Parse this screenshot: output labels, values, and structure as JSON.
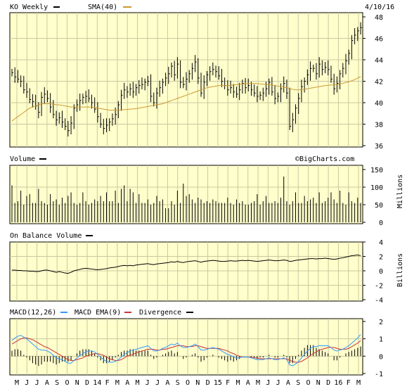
{
  "header": {
    "ticker_label": "KO Weekly",
    "sma_label": "SMA(40)",
    "date": "4/10/16"
  },
  "colors": {
    "panel_bg": "#ffffcc",
    "grid": "#c8c8a0",
    "sma": "#cc9933",
    "macd": "#3399ff",
    "macd_ema": "#cc3333",
    "bars": "#000000"
  },
  "watermark": "©BigCharts.com",
  "chart_data": [
    {
      "type": "ohlc",
      "name": "price",
      "yticks": [
        36,
        38,
        40,
        42,
        44,
        46,
        48
      ],
      "ylim": [
        36,
        48
      ],
      "x_tick_labels": [
        "M",
        "J",
        "J",
        "A",
        "S",
        "O",
        "N",
        "D",
        "14",
        "F",
        "M",
        "A",
        "M",
        "J",
        "J",
        "A",
        "S",
        "O",
        "N",
        "D",
        "15",
        "F",
        "M",
        "A",
        "M",
        "J",
        "J",
        "A",
        "S",
        "O",
        "N",
        "D",
        "16",
        "F",
        "M"
      ],
      "close": [
        42.8,
        42.4,
        42.2,
        42.0,
        41.2,
        41.0,
        40.3,
        40.1,
        39.7,
        39.1,
        40.5,
        40.8,
        40.4,
        39.6,
        38.9,
        38.4,
        38.6,
        38.2,
        37.8,
        37.4,
        38.1,
        39.5,
        39.8,
        40.2,
        40.5,
        40.6,
        40.4,
        40.0,
        39.4,
        38.7,
        38.0,
        37.6,
        37.9,
        38.2,
        38.5,
        38.9,
        39.8,
        40.7,
        41.2,
        41.0,
        41.3,
        41.0,
        41.4,
        41.6,
        41.7,
        41.9,
        42.0,
        40.6,
        40.0,
        40.9,
        41.4,
        41.9,
        42.3,
        42.7,
        43.4,
        42.6,
        43.6,
        41.9,
        41.7,
        42.2,
        42.7,
        43.2,
        43.8,
        42.3,
        40.9,
        41.9,
        42.6,
        42.9,
        43.1,
        42.9,
        42.5,
        42.0,
        41.6,
        41.2,
        41.4,
        41.0,
        40.8,
        41.2,
        41.8,
        41.4,
        41.6,
        41.2,
        40.9,
        40.6,
        40.7,
        40.9,
        41.3,
        41.9,
        41.0,
        40.4,
        40.6,
        41.3,
        41.8,
        40.9,
        37.8,
        38.4,
        39.5,
        40.4,
        41.5,
        42.0,
        42.6,
        43.2,
        43.2,
        42.7,
        43.6,
        43.1,
        43.3,
        43.1,
        42.2,
        41.3,
        41.8,
        42.7,
        43.2,
        43.9,
        44.6,
        45.8,
        46.3,
        46.7,
        47.0
      ],
      "sma": [
        38.3,
        38.5,
        38.7,
        38.9,
        39.1,
        39.3,
        39.5,
        39.6,
        39.7,
        39.8,
        39.9,
        39.9,
        39.9,
        39.9,
        39.85,
        39.8,
        39.8,
        39.75,
        39.7,
        39.65,
        39.6,
        39.6,
        39.6,
        39.6,
        39.6,
        39.6,
        39.6,
        39.6,
        39.55,
        39.5,
        39.45,
        39.4,
        39.35,
        39.3,
        39.3,
        39.3,
        39.3,
        39.32,
        39.35,
        39.38,
        39.4,
        39.42,
        39.45,
        39.5,
        39.55,
        39.6,
        39.65,
        39.7,
        39.75,
        39.8,
        39.85,
        39.9,
        40.0,
        40.1,
        40.2,
        40.3,
        40.4,
        40.5,
        40.6,
        40.7,
        40.8,
        40.9,
        41.0,
        41.1,
        41.2,
        41.3,
        41.4,
        41.45,
        41.5,
        41.55,
        41.6,
        41.6,
        41.6,
        41.6,
        41.62,
        41.65,
        41.7,
        41.72,
        41.75,
        41.78,
        41.8,
        41.8,
        41.8,
        41.78,
        41.75,
        41.72,
        41.7,
        41.68,
        41.65,
        41.6,
        41.55,
        41.5,
        41.45,
        41.4,
        41.3,
        41.25,
        41.2,
        41.2,
        41.22,
        41.25,
        41.3,
        41.35,
        41.4,
        41.45,
        41.5,
        41.55,
        41.6,
        41.62,
        41.65,
        41.68,
        41.7,
        41.75,
        41.8,
        41.88,
        41.95,
        42.05,
        42.15,
        42.3,
        42.45
      ]
    },
    {
      "type": "bar",
      "name": "volume",
      "label": "Volume",
      "yticks": [
        0,
        50,
        100,
        150
      ],
      "ylim": [
        0,
        150
      ],
      "yunit": "Millions",
      "values": [
        105,
        55,
        60,
        90,
        50,
        75,
        80,
        55,
        55,
        95,
        60,
        55,
        50,
        80,
        60,
        65,
        50,
        70,
        55,
        75,
        85,
        55,
        50,
        55,
        85,
        60,
        50,
        55,
        65,
        60,
        75,
        60,
        85,
        60,
        60,
        90,
        55,
        95,
        105,
        60,
        95,
        85,
        55,
        80,
        55,
        55,
        65,
        50,
        55,
        75,
        60,
        65,
        40,
        40,
        60,
        50,
        90,
        55,
        110,
        75,
        80,
        65,
        55,
        70,
        65,
        55,
        60,
        55,
        65,
        60,
        55,
        55,
        55,
        70,
        55,
        50,
        65,
        55,
        60,
        50,
        50,
        55,
        60,
        80,
        50,
        60,
        75,
        55,
        55,
        60,
        55,
        70,
        130,
        60,
        50,
        60,
        85,
        55,
        55,
        75,
        60,
        65,
        70,
        55,
        85,
        55,
        60,
        70,
        85,
        65,
        55,
        90,
        55,
        50,
        85,
        60,
        55,
        70,
        55
      ]
    },
    {
      "type": "line",
      "name": "on_balance_volume",
      "label": "On Balance Volume",
      "yticks": [
        -4,
        -2,
        0,
        2,
        4
      ],
      "ylim": [
        -4,
        4
      ],
      "yunit": "Billions",
      "values": [
        0.1,
        0.1,
        0.05,
        0.05,
        0.0,
        0.0,
        -0.05,
        -0.05,
        -0.1,
        -0.1,
        0.0,
        0.1,
        0.1,
        0.0,
        -0.1,
        -0.2,
        -0.1,
        -0.2,
        -0.3,
        -0.35,
        -0.2,
        0.0,
        0.1,
        0.2,
        0.3,
        0.35,
        0.3,
        0.25,
        0.2,
        0.15,
        0.2,
        0.25,
        0.3,
        0.4,
        0.45,
        0.5,
        0.6,
        0.7,
        0.75,
        0.7,
        0.75,
        0.7,
        0.8,
        0.85,
        0.9,
        0.95,
        1.0,
        0.9,
        0.85,
        0.95,
        1.0,
        1.05,
        1.1,
        1.15,
        1.25,
        1.2,
        1.3,
        1.2,
        1.15,
        1.25,
        1.3,
        1.35,
        1.4,
        1.3,
        1.2,
        1.3,
        1.35,
        1.4,
        1.45,
        1.4,
        1.35,
        1.3,
        1.3,
        1.35,
        1.4,
        1.35,
        1.35,
        1.4,
        1.45,
        1.4,
        1.45,
        1.4,
        1.35,
        1.3,
        1.35,
        1.4,
        1.45,
        1.5,
        1.45,
        1.4,
        1.4,
        1.45,
        1.5,
        1.45,
        1.3,
        1.35,
        1.45,
        1.5,
        1.55,
        1.6,
        1.65,
        1.7,
        1.7,
        1.65,
        1.7,
        1.7,
        1.75,
        1.7,
        1.65,
        1.6,
        1.65,
        1.75,
        1.8,
        1.9,
        2.0,
        2.1,
        2.15,
        2.2,
        2.1
      ]
    },
    {
      "type": "line",
      "name": "macd",
      "label": "MACD(12,26)",
      "ema_label": "MACD EMA(9)",
      "divergence_label": "Divergence",
      "yticks": [
        -1,
        0,
        1,
        2
      ],
      "ylim": [
        -1,
        2
      ],
      "macd": [
        0.9,
        1.05,
        1.15,
        1.2,
        1.1,
        1.0,
        0.85,
        0.7,
        0.55,
        0.4,
        0.35,
        0.35,
        0.3,
        0.2,
        0.05,
        -0.1,
        -0.15,
        -0.2,
        -0.3,
        -0.4,
        -0.4,
        -0.25,
        -0.1,
        0.05,
        0.15,
        0.25,
        0.3,
        0.3,
        0.25,
        0.1,
        -0.05,
        -0.2,
        -0.3,
        -0.35,
        -0.35,
        -0.3,
        -0.2,
        -0.05,
        0.1,
        0.2,
        0.3,
        0.35,
        0.4,
        0.45,
        0.5,
        0.55,
        0.6,
        0.45,
        0.3,
        0.3,
        0.35,
        0.45,
        0.5,
        0.6,
        0.7,
        0.65,
        0.75,
        0.6,
        0.5,
        0.5,
        0.55,
        0.6,
        0.7,
        0.55,
        0.35,
        0.35,
        0.4,
        0.45,
        0.5,
        0.45,
        0.4,
        0.3,
        0.2,
        0.1,
        0.05,
        -0.05,
        -0.1,
        -0.1,
        -0.05,
        -0.05,
        -0.05,
        -0.1,
        -0.15,
        -0.2,
        -0.2,
        -0.2,
        -0.15,
        -0.1,
        -0.15,
        -0.2,
        -0.2,
        -0.15,
        -0.1,
        -0.2,
        -0.5,
        -0.55,
        -0.45,
        -0.3,
        -0.1,
        0.1,
        0.3,
        0.45,
        0.55,
        0.55,
        0.6,
        0.6,
        0.6,
        0.6,
        0.5,
        0.35,
        0.3,
        0.35,
        0.4,
        0.5,
        0.6,
        0.75,
        0.9,
        1.05,
        1.25
      ],
      "ema": [
        0.7,
        0.8,
        0.9,
        1.0,
        1.05,
        1.05,
        1.0,
        0.95,
        0.85,
        0.75,
        0.65,
        0.55,
        0.5,
        0.4,
        0.3,
        0.2,
        0.1,
        0.0,
        -0.1,
        -0.2,
        -0.25,
        -0.25,
        -0.2,
        -0.15,
        -0.1,
        0.0,
        0.05,
        0.1,
        0.15,
        0.15,
        0.1,
        0.05,
        -0.05,
        -0.15,
        -0.2,
        -0.25,
        -0.25,
        -0.2,
        -0.1,
        0.0,
        0.05,
        0.1,
        0.2,
        0.25,
        0.3,
        0.35,
        0.4,
        0.4,
        0.4,
        0.35,
        0.35,
        0.4,
        0.4,
        0.45,
        0.5,
        0.55,
        0.6,
        0.6,
        0.6,
        0.55,
        0.55,
        0.55,
        0.6,
        0.6,
        0.55,
        0.5,
        0.45,
        0.45,
        0.45,
        0.45,
        0.45,
        0.4,
        0.35,
        0.3,
        0.2,
        0.15,
        0.05,
        0.0,
        -0.05,
        -0.05,
        -0.05,
        -0.05,
        -0.1,
        -0.1,
        -0.15,
        -0.15,
        -0.15,
        -0.15,
        -0.15,
        -0.15,
        -0.15,
        -0.15,
        -0.15,
        -0.15,
        -0.25,
        -0.3,
        -0.35,
        -0.35,
        -0.3,
        -0.2,
        -0.1,
        0.05,
        0.15,
        0.25,
        0.35,
        0.4,
        0.45,
        0.5,
        0.5,
        0.5,
        0.45,
        0.4,
        0.4,
        0.4,
        0.45,
        0.55,
        0.65,
        0.75,
        0.9
      ]
    }
  ]
}
